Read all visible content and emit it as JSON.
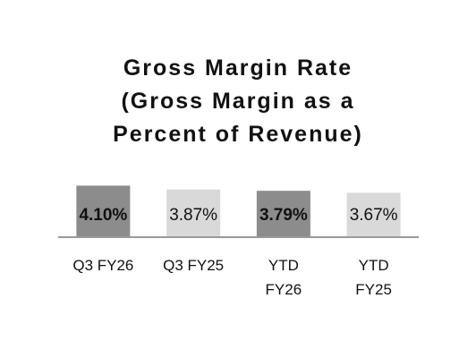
{
  "chart_data": {
    "type": "bar",
    "title": "Gross Margin Rate\n(Gross Margin as a\nPercent of Revenue)",
    "categories": [
      "Q3 FY26",
      "Q3 FY25",
      "YTD\nFY26",
      "YTD\nFY25"
    ],
    "values": [
      4.1,
      3.87,
      3.79,
      3.67
    ],
    "value_labels": [
      "4.10%",
      "3.87%",
      "3.79%",
      "3.67%"
    ],
    "colors": [
      "#8c8c8c",
      "#d9d9d9",
      "#8c8c8c",
      "#d9d9d9"
    ],
    "bold_labels": [
      true,
      false,
      true,
      false
    ],
    "ylim": [
      1,
      4.5
    ]
  }
}
